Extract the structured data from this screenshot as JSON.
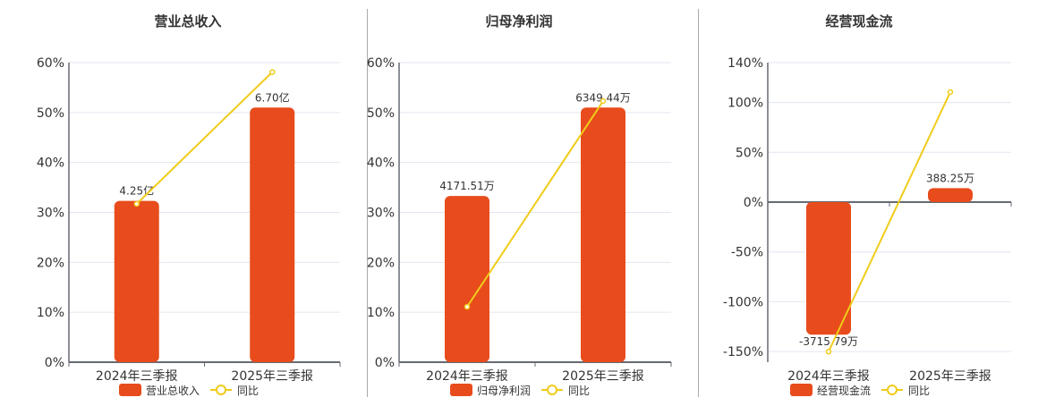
{
  "chart_data": [
    {
      "type": "bar+line",
      "title": "营业总收入",
      "categories": [
        "2024年三季报",
        "2025年三季报"
      ],
      "series": [
        {
          "name": "营业总收入",
          "type": "bar",
          "values": [
            4.25,
            6.7
          ],
          "unit": "亿",
          "labels": [
            "4.25亿",
            "6.70亿"
          ],
          "bar_scale_pct": [
            32.3,
            51.0
          ]
        },
        {
          "name": "同比",
          "type": "line",
          "values": [
            31.7,
            58.1
          ],
          "unit": "%"
        }
      ],
      "yaxis": {
        "ticks": [
          "0%",
          "10%",
          "20%",
          "30%",
          "40%",
          "50%",
          "60%"
        ],
        "ylim": [
          0,
          60
        ]
      },
      "grid": true,
      "legend_position": "bottom"
    },
    {
      "type": "bar+line",
      "title": "归母净利润",
      "categories": [
        "2024年三季报",
        "2025年三季报"
      ],
      "series": [
        {
          "name": "归母净利润",
          "type": "bar",
          "values": [
            4171.51,
            6349.44
          ],
          "unit": "万",
          "labels": [
            "4171.51万",
            "6349.44万"
          ],
          "bar_scale_pct": [
            33.3,
            51.0
          ]
        },
        {
          "name": "同比",
          "type": "line",
          "values": [
            11.1,
            52.3
          ],
          "unit": "%"
        }
      ],
      "yaxis": {
        "ticks": [
          "0%",
          "10%",
          "20%",
          "30%",
          "40%",
          "50%",
          "60%"
        ],
        "ylim": [
          0,
          60
        ]
      },
      "grid": true,
      "legend_position": "bottom"
    },
    {
      "type": "bar+line",
      "title": "经营现金流",
      "categories": [
        "2024年三季报",
        "2025年三季报"
      ],
      "series": [
        {
          "name": "经营现金流",
          "type": "bar",
          "values": [
            -3715.79,
            388.25
          ],
          "unit": "万",
          "labels": [
            "-3715.79万",
            "388.25万"
          ],
          "bar_scale_pct": [
            -133.0,
            14.0
          ]
        },
        {
          "name": "同比",
          "type": "line",
          "values": [
            -150.0,
            110.4
          ],
          "unit": "%"
        }
      ],
      "yaxis": {
        "ticks": [
          "-150%",
          "-100%",
          "-50%",
          "0%",
          "50%",
          "100%",
          "140%"
        ],
        "ylim": [
          -160,
          140
        ]
      },
      "grid": true,
      "legend_position": "bottom"
    }
  ],
  "colors": {
    "bar": "#e84c1c",
    "line": "#f0cc1a",
    "grid": "#e1e6ef",
    "axis": "#666a73",
    "text": "#333333"
  }
}
